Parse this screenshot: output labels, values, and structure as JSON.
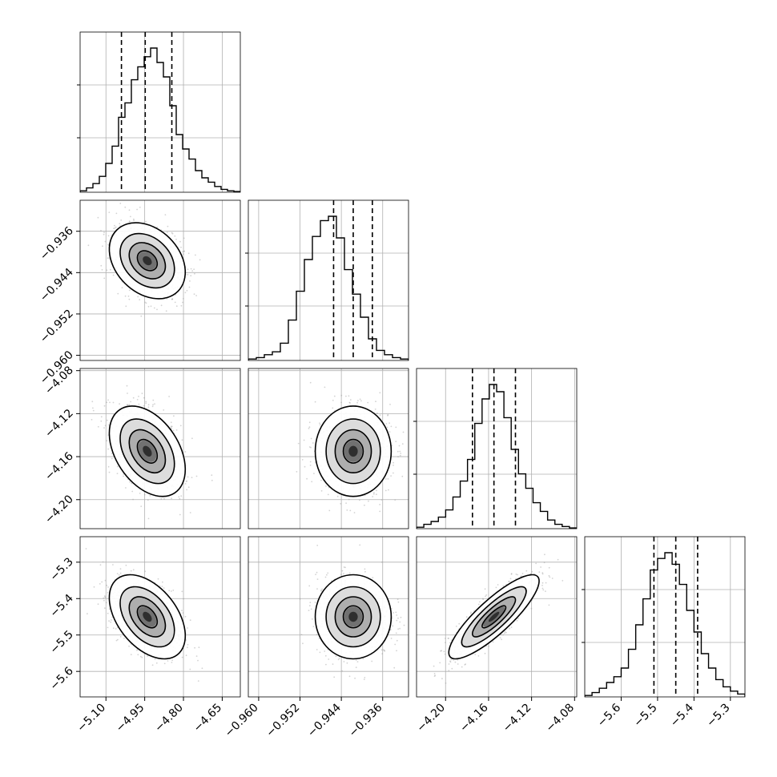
{
  "chart_data": {
    "type": "corner",
    "style": {
      "contour_color": "#000000",
      "hist_color": "#000000",
      "point_color": "#9e9e9e",
      "density_colormap": "greys",
      "grid": true
    },
    "parameters": [
      {
        "id": "p0",
        "xlim": [
          -5.2,
          -4.58
        ],
        "ylim": [
          -0.961,
          -0.93
        ],
        "ticks": [
          "-5.10",
          "-4.95",
          "-4.80",
          "-4.65"
        ],
        "tick_values": [
          -5.1,
          -4.95,
          -4.8,
          -4.65
        ],
        "quantiles": [
          -5.04,
          -4.948,
          -4.845
        ],
        "mean": -4.94,
        "sd": 0.07,
        "hist": [
          0.01,
          0.03,
          0.06,
          0.11,
          0.2,
          0.32,
          0.52,
          0.62,
          0.78,
          0.87,
          0.94,
          1.0,
          0.9,
          0.8,
          0.6,
          0.4,
          0.3,
          0.23,
          0.15,
          0.1,
          0.07,
          0.04,
          0.02,
          0.01,
          0.005
        ]
      },
      {
        "id": "p1",
        "xlim": [
          -0.962,
          -0.931
        ],
        "ylim": [
          -0.961,
          -0.93
        ],
        "ticks": [
          "-0.960",
          "-0.952",
          "-0.944",
          "-0.936"
        ],
        "tick_values": [
          -0.96,
          -0.952,
          -0.944,
          -0.936
        ],
        "ylabels": [
          "-0.936",
          "-0.944",
          "-0.952",
          "-0.960"
        ],
        "ylabel_values": [
          -0.936,
          -0.944,
          -0.952,
          -0.96
        ],
        "quantiles": [
          -0.9455,
          -0.9417,
          -0.938
        ],
        "mean": -0.9417,
        "sd": 0.0035,
        "hist": [
          0.01,
          0.02,
          0.04,
          0.06,
          0.12,
          0.28,
          0.48,
          0.7,
          0.86,
          0.97,
          1.0,
          0.85,
          0.63,
          0.46,
          0.3,
          0.15,
          0.07,
          0.04,
          0.02,
          0.01
        ]
      },
      {
        "id": "p2",
        "xlim": [
          -4.227,
          -4.078
        ],
        "ylim": [
          -4.227,
          -4.078
        ],
        "ticks": [
          "-4.20",
          "-4.16",
          "-4.12",
          "-4.08"
        ],
        "tick_values": [
          -4.2,
          -4.16,
          -4.12,
          -4.08
        ],
        "ylabels": [
          "-4.08",
          "-4.12",
          "-4.16",
          "-4.20"
        ],
        "ylabel_values": [
          -4.08,
          -4.12,
          -4.16,
          -4.2
        ],
        "quantiles": [
          -4.175,
          -4.155,
          -4.135
        ],
        "mean": -4.155,
        "sd": 0.02,
        "hist": [
          0.01,
          0.03,
          0.05,
          0.08,
          0.13,
          0.22,
          0.33,
          0.48,
          0.73,
          0.9,
          1.0,
          0.95,
          0.77,
          0.55,
          0.38,
          0.28,
          0.18,
          0.12,
          0.06,
          0.03,
          0.015,
          0.005
        ]
      },
      {
        "id": "p3",
        "xlim": [
          -5.7,
          -5.26
        ],
        "ylim": [
          -5.67,
          -5.23
        ],
        "ticks": [
          "-5.6",
          "-5.5",
          "-5.4",
          "-5.3"
        ],
        "tick_values": [
          -5.6,
          -5.5,
          -5.4,
          -5.3
        ],
        "ylabels": [
          "-5.3",
          "-5.4",
          "-5.5",
          "-5.6"
        ],
        "ylabel_values": [
          -5.3,
          -5.4,
          -5.5,
          -5.6
        ],
        "quantiles": [
          -5.51,
          -5.45,
          -5.39
        ],
        "mean": -5.45,
        "sd": 0.055,
        "hist": [
          0.01,
          0.03,
          0.06,
          0.1,
          0.14,
          0.2,
          0.33,
          0.5,
          0.68,
          0.88,
          0.96,
          1.0,
          0.92,
          0.78,
          0.6,
          0.45,
          0.3,
          0.2,
          0.12,
          0.07,
          0.04,
          0.02
        ]
      }
    ],
    "correlations": {
      "1-0": -0.3,
      "2-0": -0.4,
      "2-1": 0.0,
      "3-0": -0.45,
      "3-1": 0.0,
      "3-2": 0.85
    }
  }
}
